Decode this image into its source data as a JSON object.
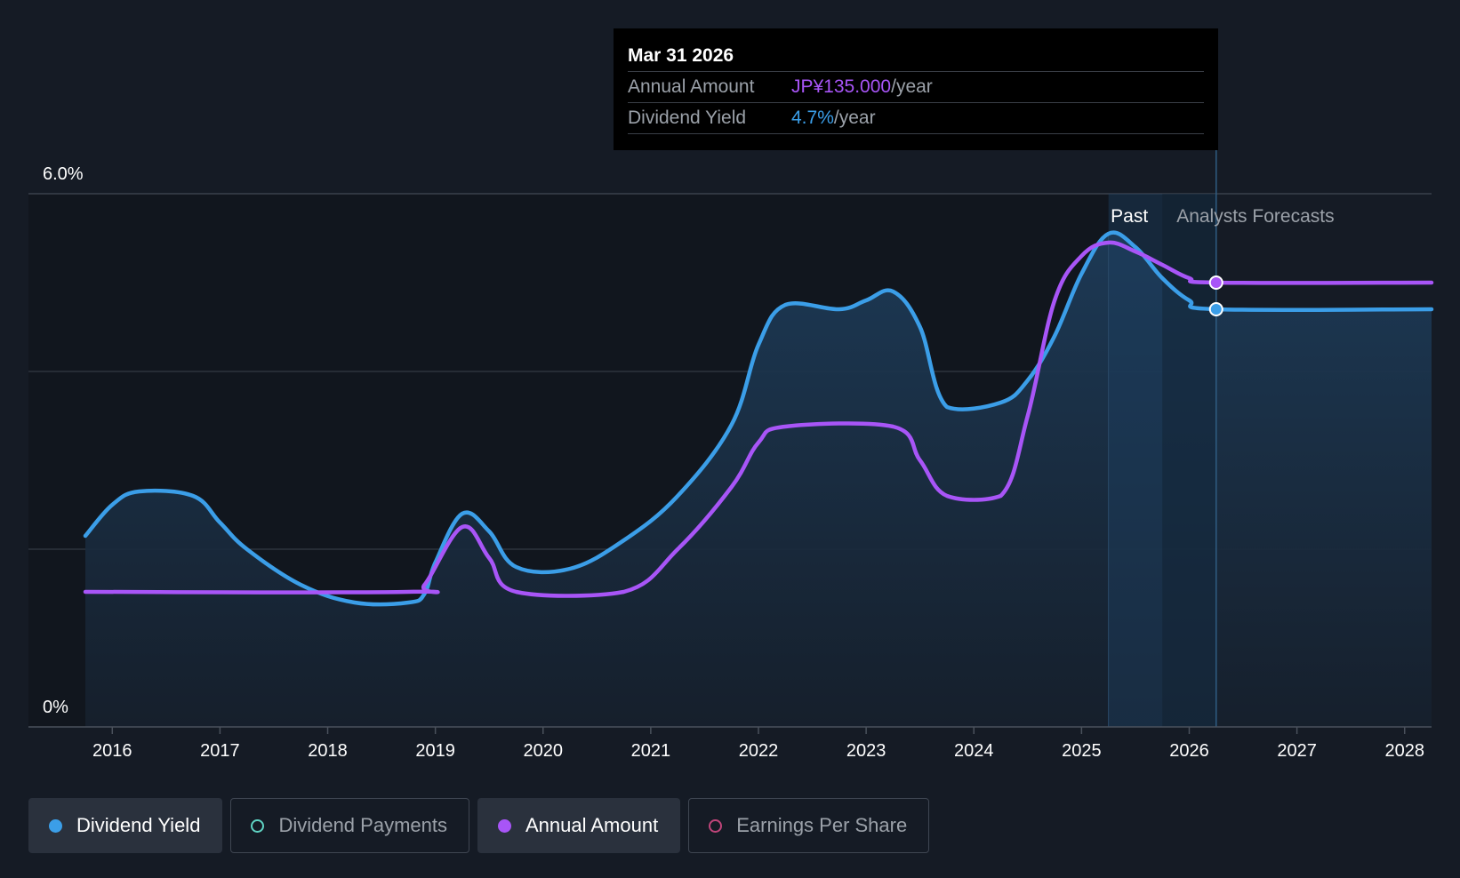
{
  "tooltip": {
    "date": "Mar 31 2026",
    "rows": [
      {
        "label": "Annual Amount",
        "value": "JP¥135.000",
        "unit": "/year",
        "color": "#a855f7"
      },
      {
        "label": "Dividend Yield",
        "value": "4.7%",
        "unit": "/year",
        "color": "#3b9ee8"
      }
    ]
  },
  "region_labels": {
    "past": "Past",
    "forecast": "Analysts Forecasts"
  },
  "legend": [
    {
      "label": "Dividend Yield",
      "color": "#3b9ee8",
      "active": true,
      "marker": "filled"
    },
    {
      "label": "Dividend Payments",
      "color": "#5fd3c3",
      "active": false,
      "marker": "ring"
    },
    {
      "label": "Annual Amount",
      "color": "#a855f7",
      "active": true,
      "marker": "filled"
    },
    {
      "label": "Earnings Per Share",
      "color": "#c0457a",
      "active": false,
      "marker": "ring"
    }
  ],
  "colors": {
    "background": "#151b25",
    "yield": "#3b9ee8",
    "annual": "#a855f7",
    "grid": "#3a414c",
    "axis_text": "#ffffff"
  },
  "chart_data": {
    "type": "line",
    "y_axis": {
      "min": 0,
      "max": 6.0,
      "labels": [
        "6.0%",
        "0%"
      ],
      "gridlines": [
        0,
        2,
        4,
        6
      ]
    },
    "x_axis": {
      "min": 2015.75,
      "max": 2028.25,
      "ticks": [
        "2016",
        "2017",
        "2018",
        "2019",
        "2020",
        "2021",
        "2022",
        "2023",
        "2024",
        "2025",
        "2026",
        "2027",
        "2028"
      ]
    },
    "past_start": 2025.25,
    "forecast_start": 2025.75,
    "hover_x": 2026.25,
    "series": [
      {
        "name": "Dividend Yield",
        "color": "#3b9ee8",
        "points": [
          [
            2015.75,
            2.15
          ],
          [
            2016.0,
            2.5
          ],
          [
            2016.25,
            2.65
          ],
          [
            2016.75,
            2.6
          ],
          [
            2017.0,
            2.3
          ],
          [
            2017.25,
            2.0
          ],
          [
            2017.75,
            1.6
          ],
          [
            2018.25,
            1.4
          ],
          [
            2018.75,
            1.4
          ],
          [
            2018.9,
            1.5
          ],
          [
            2019.0,
            1.85
          ],
          [
            2019.25,
            2.4
          ],
          [
            2019.5,
            2.2
          ],
          [
            2019.75,
            1.8
          ],
          [
            2020.25,
            1.78
          ],
          [
            2020.75,
            2.1
          ],
          [
            2021.25,
            2.6
          ],
          [
            2021.75,
            3.4
          ],
          [
            2022.0,
            4.3
          ],
          [
            2022.25,
            4.75
          ],
          [
            2022.75,
            4.7
          ],
          [
            2023.0,
            4.8
          ],
          [
            2023.25,
            4.9
          ],
          [
            2023.5,
            4.5
          ],
          [
            2023.75,
            3.6
          ],
          [
            2024.25,
            3.65
          ],
          [
            2024.5,
            3.9
          ],
          [
            2024.75,
            4.4
          ],
          [
            2025.0,
            5.1
          ],
          [
            2025.25,
            5.55
          ],
          [
            2025.5,
            5.4
          ],
          [
            2025.75,
            5.05
          ],
          [
            2026.0,
            4.8
          ],
          [
            2026.25,
            4.7
          ],
          [
            2028.25,
            4.7
          ]
        ]
      },
      {
        "name": "Annual Amount",
        "color": "#a855f7",
        "points": [
          [
            2015.75,
            1.52
          ],
          [
            2018.75,
            1.52
          ],
          [
            2018.9,
            1.6
          ],
          [
            2019.25,
            2.25
          ],
          [
            2019.5,
            1.9
          ],
          [
            2019.75,
            1.52
          ],
          [
            2020.75,
            1.52
          ],
          [
            2021.25,
            2.0
          ],
          [
            2021.75,
            2.7
          ],
          [
            2022.0,
            3.2
          ],
          [
            2022.25,
            3.38
          ],
          [
            2023.25,
            3.38
          ],
          [
            2023.5,
            3.0
          ],
          [
            2023.75,
            2.6
          ],
          [
            2024.25,
            2.6
          ],
          [
            2024.5,
            3.5
          ],
          [
            2024.75,
            4.8
          ],
          [
            2025.0,
            5.3
          ],
          [
            2025.25,
            5.45
          ],
          [
            2025.5,
            5.35
          ],
          [
            2025.75,
            5.2
          ],
          [
            2026.0,
            5.05
          ],
          [
            2026.25,
            5.0
          ],
          [
            2028.25,
            5.0
          ]
        ]
      }
    ]
  }
}
